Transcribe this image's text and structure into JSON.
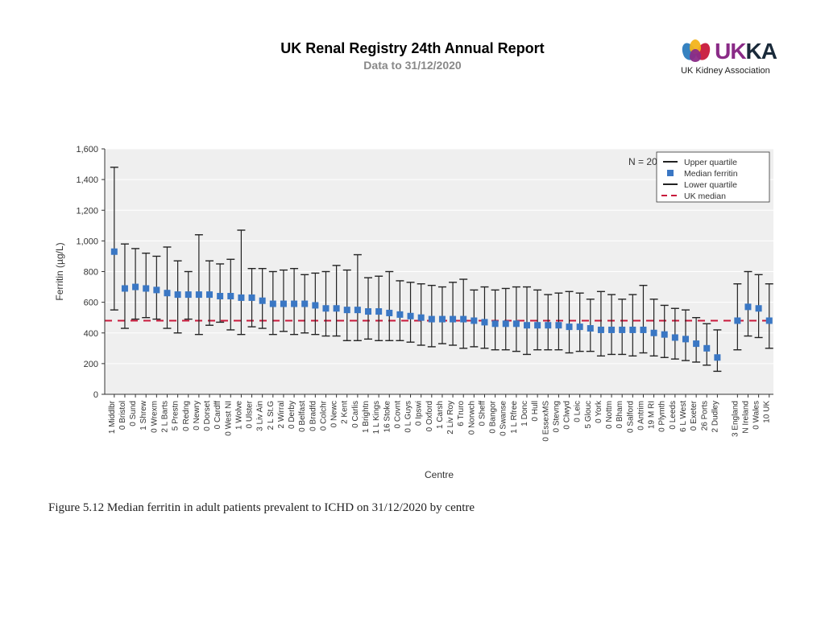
{
  "header": {
    "title": "UK Renal Registry 24th Annual Report",
    "subtitle": "Data to 31/12/2020"
  },
  "logo": {
    "text_colored": "UK",
    "text_dark": "KA",
    "sub": "UK Kidney Association",
    "colors": {
      "blue": "#2b7bbd",
      "purple": "#8a2b87",
      "red": "#c8193b",
      "yellow": "#f3b41b"
    }
  },
  "chart": {
    "plot_bg": "#efefef",
    "grid_color": "#ffffff",
    "axis_color": "#333333",
    "ylabel": "Ferritin (µg/L)",
    "xlabel": "Centre",
    "ylim": [
      0,
      1600
    ],
    "ytick_step": 200,
    "uk_median": 480,
    "uk_median_color": "#c8193b",
    "median_marker_color": "#3a77c4",
    "whisker_color": "#222222",
    "n_label": "N = 20,100",
    "legend": [
      {
        "label": "Upper quartile",
        "type": "dash"
      },
      {
        "label": "Median ferritin",
        "type": "square"
      },
      {
        "label": "Lower quartile",
        "type": "dash"
      },
      {
        "label": "UK median",
        "type": "line"
      }
    ],
    "centres": [
      {
        "name": "1 Middlbr",
        "median": 930,
        "lower": 550,
        "upper": 1480
      },
      {
        "name": "0 Bristol",
        "median": 690,
        "lower": 430,
        "upper": 980
      },
      {
        "name": "0 Sund",
        "median": 700,
        "lower": 490,
        "upper": 950
      },
      {
        "name": "1 Shrew",
        "median": 690,
        "lower": 500,
        "upper": 920
      },
      {
        "name": "0 Wrexm",
        "median": 680,
        "lower": 490,
        "upper": 900
      },
      {
        "name": "2 L Barts",
        "median": 660,
        "lower": 430,
        "upper": 960
      },
      {
        "name": "5 Prestn",
        "median": 650,
        "lower": 400,
        "upper": 870
      },
      {
        "name": "0 Redng",
        "median": 650,
        "lower": 490,
        "upper": 800
      },
      {
        "name": "0 Newry",
        "median": 650,
        "lower": 390,
        "upper": 1040
      },
      {
        "name": "0 Dorset",
        "median": 650,
        "lower": 450,
        "upper": 870
      },
      {
        "name": "0 Cardff",
        "median": 640,
        "lower": 470,
        "upper": 850
      },
      {
        "name": "0 West NI",
        "median": 640,
        "lower": 420,
        "upper": 880
      },
      {
        "name": "1 Wolve",
        "median": 630,
        "lower": 390,
        "upper": 1070
      },
      {
        "name": "0 Ulster",
        "median": 630,
        "lower": 440,
        "upper": 820
      },
      {
        "name": "3 Liv Ain",
        "median": 610,
        "lower": 430,
        "upper": 820
      },
      {
        "name": "2 L St.G",
        "median": 590,
        "lower": 390,
        "upper": 800
      },
      {
        "name": "2 Wirral",
        "median": 590,
        "lower": 410,
        "upper": 810
      },
      {
        "name": "0 Derby",
        "median": 590,
        "lower": 390,
        "upper": 820
      },
      {
        "name": "0 Belfast",
        "median": 590,
        "lower": 400,
        "upper": 780
      },
      {
        "name": "0 Bradfd",
        "median": 580,
        "lower": 390,
        "upper": 790
      },
      {
        "name": "0 Colchr",
        "median": 560,
        "lower": 380,
        "upper": 800
      },
      {
        "name": "0 Newc",
        "median": 560,
        "lower": 380,
        "upper": 840
      },
      {
        "name": "2 Kent",
        "median": 550,
        "lower": 350,
        "upper": 810
      },
      {
        "name": "0 Carlis",
        "median": 550,
        "lower": 350,
        "upper": 910
      },
      {
        "name": "1 Brightn",
        "median": 540,
        "lower": 360,
        "upper": 760
      },
      {
        "name": "1 L Kings",
        "median": 540,
        "lower": 350,
        "upper": 770
      },
      {
        "name": "16 Stoke",
        "median": 530,
        "lower": 350,
        "upper": 800
      },
      {
        "name": "0 Covnt",
        "median": 520,
        "lower": 350,
        "upper": 740
      },
      {
        "name": "0 L Guys",
        "median": 510,
        "lower": 340,
        "upper": 730
      },
      {
        "name": "0 Ipswi",
        "median": 500,
        "lower": 320,
        "upper": 720
      },
      {
        "name": "0 Oxford",
        "median": 490,
        "lower": 310,
        "upper": 710
      },
      {
        "name": "1 Carsh",
        "median": 490,
        "lower": 330,
        "upper": 700
      },
      {
        "name": "2 Liv Roy",
        "median": 490,
        "lower": 320,
        "upper": 730
      },
      {
        "name": "6 Truro",
        "median": 490,
        "lower": 300,
        "upper": 750
      },
      {
        "name": "0 Norwch",
        "median": 480,
        "lower": 310,
        "upper": 680
      },
      {
        "name": "0 Sheff",
        "median": 470,
        "lower": 300,
        "upper": 700
      },
      {
        "name": "0 Bangor",
        "median": 460,
        "lower": 290,
        "upper": 680
      },
      {
        "name": "0 Swanse",
        "median": 460,
        "lower": 290,
        "upper": 690
      },
      {
        "name": "1 L Rfree",
        "median": 460,
        "lower": 280,
        "upper": 700
      },
      {
        "name": "1 Donc",
        "median": 450,
        "lower": 260,
        "upper": 700
      },
      {
        "name": "0 Hull",
        "median": 450,
        "lower": 290,
        "upper": 680
      },
      {
        "name": "0 EssexMS",
        "median": 450,
        "lower": 290,
        "upper": 650
      },
      {
        "name": "0 Stevng",
        "median": 450,
        "lower": 290,
        "upper": 660
      },
      {
        "name": "0 Clwyd",
        "median": 440,
        "lower": 270,
        "upper": 670
      },
      {
        "name": "0 Leic",
        "median": 440,
        "lower": 280,
        "upper": 660
      },
      {
        "name": "5 Glouc",
        "median": 430,
        "lower": 280,
        "upper": 620
      },
      {
        "name": "0 York",
        "median": 420,
        "lower": 250,
        "upper": 670
      },
      {
        "name": "0 Nottm",
        "median": 420,
        "lower": 260,
        "upper": 650
      },
      {
        "name": "0 Bham",
        "median": 420,
        "lower": 260,
        "upper": 620
      },
      {
        "name": "0 Salford",
        "median": 420,
        "lower": 250,
        "upper": 650
      },
      {
        "name": "0 Antrim",
        "median": 420,
        "lower": 270,
        "upper": 710
      },
      {
        "name": "19 M RI",
        "median": 400,
        "lower": 250,
        "upper": 620
      },
      {
        "name": "0 Plymth",
        "median": 390,
        "lower": 240,
        "upper": 580
      },
      {
        "name": "0 Leeds",
        "median": 370,
        "lower": 230,
        "upper": 560
      },
      {
        "name": "6 L West",
        "median": 360,
        "lower": 220,
        "upper": 550
      },
      {
        "name": "0 Exeter",
        "median": 330,
        "lower": 210,
        "upper": 500
      },
      {
        "name": "26 Ports",
        "median": 300,
        "lower": 190,
        "upper": 460
      },
      {
        "name": "2 Dudley",
        "median": 240,
        "lower": 150,
        "upper": 420
      },
      {
        "name": "3 England",
        "median": 480,
        "lower": 290,
        "upper": 720
      },
      {
        "name": "N Ireland",
        "median": 570,
        "lower": 380,
        "upper": 800
      },
      {
        "name": "0 Wales",
        "median": 560,
        "lower": 370,
        "upper": 780
      },
      {
        "name": "10 UK",
        "median": 480,
        "lower": 300,
        "upper": 720
      }
    ]
  },
  "caption": "Figure 5.12 Median ferritin in adult patients prevalent to ICHD on 31/12/2020 by centre"
}
